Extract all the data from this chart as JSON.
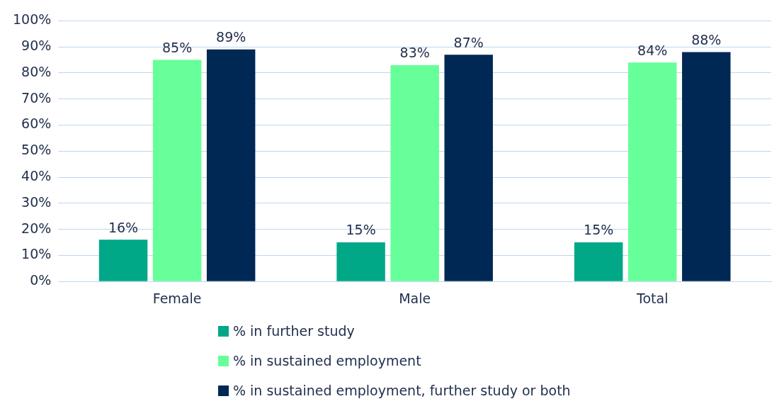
{
  "chart_data": {
    "type": "bar",
    "categories": [
      "Female",
      "Male",
      "Total"
    ],
    "series": [
      {
        "name": "% in further study",
        "color": "#00a887",
        "values": [
          16,
          15,
          15
        ],
        "value_labels": [
          "16%",
          "15%",
          "15%"
        ]
      },
      {
        "name": "% in sustained employment",
        "color": "#66ff99",
        "values": [
          85,
          83,
          84
        ],
        "value_labels": [
          "85%",
          "83%",
          "84%"
        ]
      },
      {
        "name": "% in sustained employment, further study or both",
        "color": "#002855",
        "values": [
          89,
          87,
          88
        ],
        "value_labels": [
          "89%",
          "87%",
          "88%"
        ]
      }
    ],
    "ylim": [
      0,
      100
    ],
    "yticks": [
      {
        "value": 0,
        "label": "0%"
      },
      {
        "value": 10,
        "label": "10%"
      },
      {
        "value": 20,
        "label": "20%"
      },
      {
        "value": 30,
        "label": "30%"
      },
      {
        "value": 40,
        "label": "40%"
      },
      {
        "value": 50,
        "label": "50%"
      },
      {
        "value": 60,
        "label": "60%"
      },
      {
        "value": 70,
        "label": "70%"
      },
      {
        "value": 80,
        "label": "80%"
      },
      {
        "value": 90,
        "label": "90%"
      },
      {
        "value": 100,
        "label": "100%"
      }
    ],
    "grid": "y",
    "legend": "bottom"
  }
}
